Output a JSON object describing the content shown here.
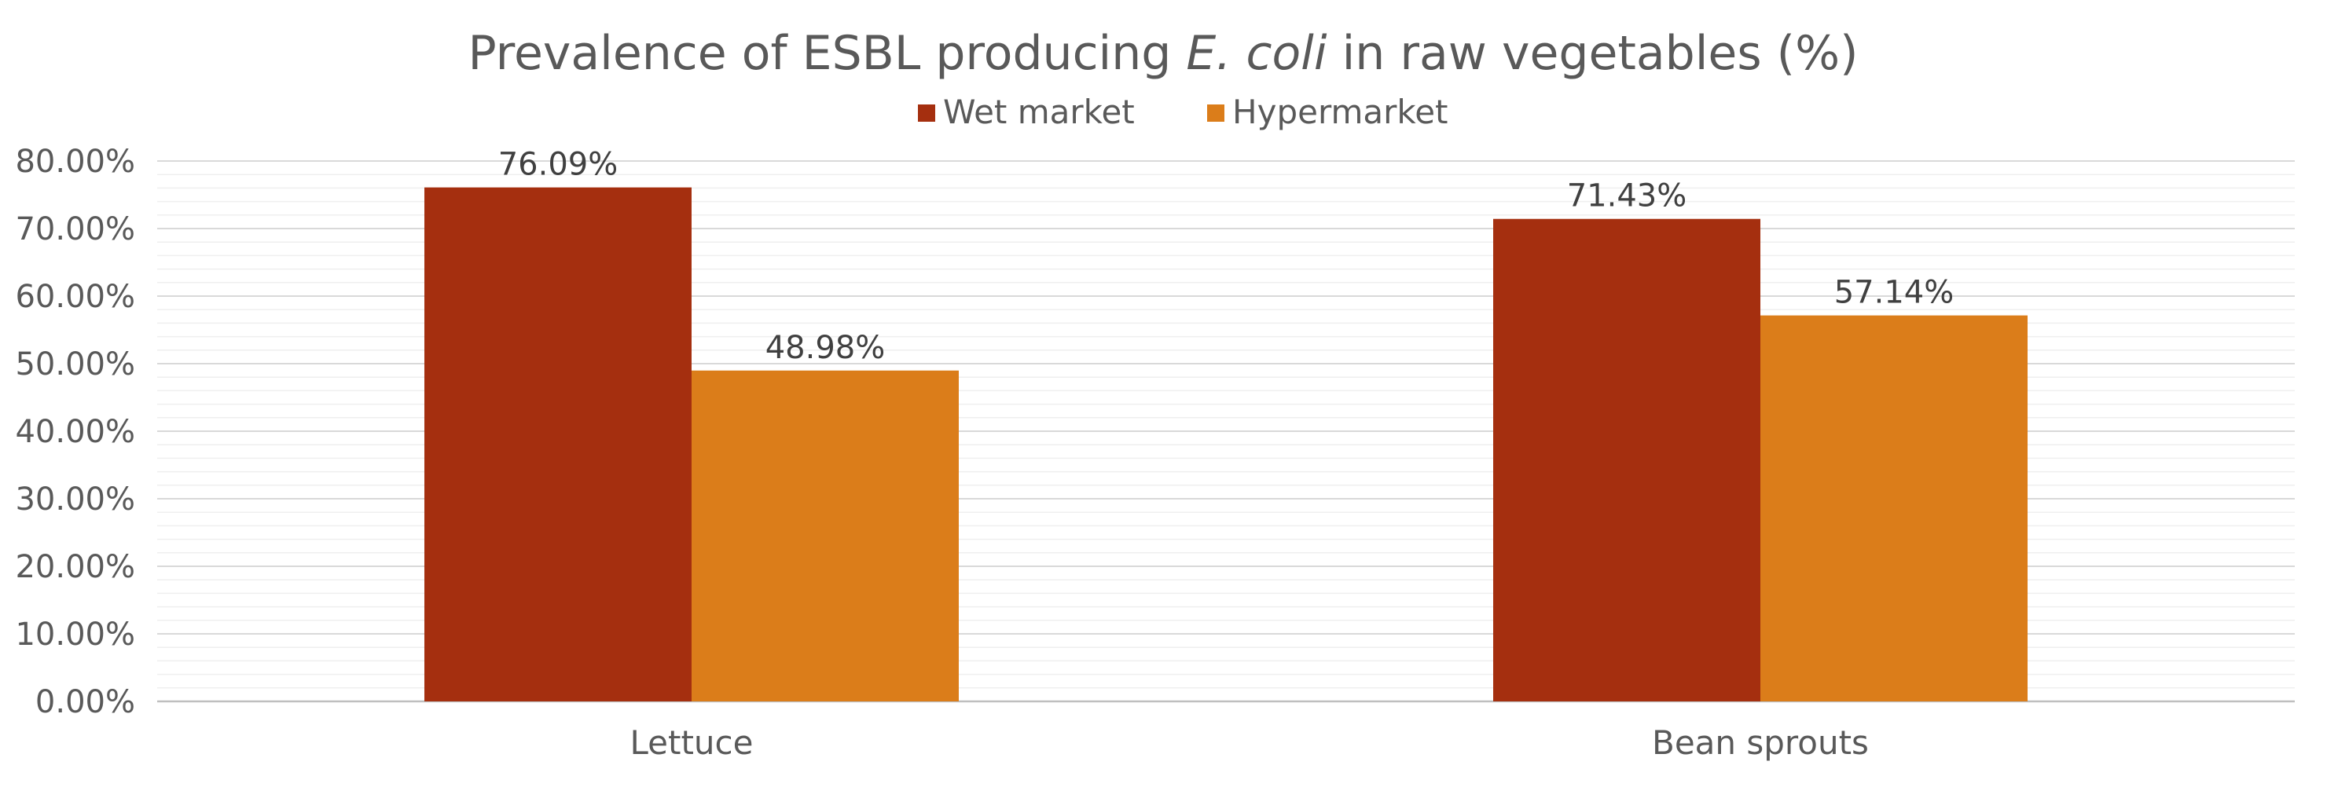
{
  "chart_data": {
    "type": "bar",
    "title_main": "Prevalence of ESBL producing ",
    "title_italic": "E. coli",
    "title_tail": " in raw vegetables (%)",
    "categories": [
      "Lettuce",
      "Bean sprouts"
    ],
    "series": [
      {
        "name": "Wet market",
        "color": "#A52F0F",
        "values": [
          76.09,
          71.43
        ],
        "labels": [
          "76.09%",
          "71.43%"
        ]
      },
      {
        "name": "Hypermarket",
        "color": "#DB7D1A",
        "values": [
          48.98,
          57.14
        ],
        "labels": [
          "48.98%",
          "57.14%"
        ]
      }
    ],
    "ylim": [
      0,
      80
    ],
    "yticks": [
      0,
      10,
      20,
      30,
      40,
      50,
      60,
      70,
      80
    ],
    "ytick_labels": [
      "0.00%",
      "10.00%",
      "20.00%",
      "30.00%",
      "40.00%",
      "50.00%",
      "60.00%",
      "70.00%",
      "80.00%"
    ],
    "minor_step": 2,
    "legend_position": "top",
    "grid": true
  }
}
